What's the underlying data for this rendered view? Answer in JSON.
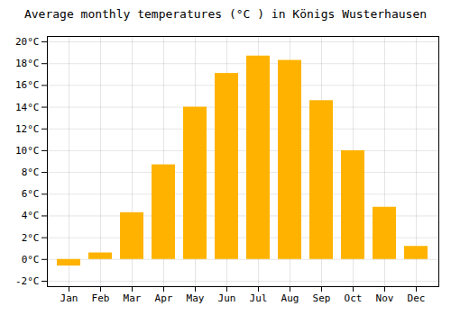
{
  "chart_data": {
    "type": "bar",
    "title": "Average monthly temperatures (°C ) in Königs Wusterhausen",
    "categories": [
      "Jan",
      "Feb",
      "Mar",
      "Apr",
      "May",
      "Jun",
      "Jul",
      "Aug",
      "Sep",
      "Oct",
      "Nov",
      "Dec"
    ],
    "values": [
      -0.6,
      0.6,
      4.3,
      8.7,
      14.0,
      17.1,
      18.7,
      18.3,
      14.6,
      10.0,
      4.8,
      1.2
    ],
    "color": "#FFB300",
    "ylim": [
      -2.5,
      20.5
    ],
    "yticks": [
      {
        "value": -2,
        "label": "-2°C"
      },
      {
        "value": 0,
        "label": "0°C"
      },
      {
        "value": 2,
        "label": "2°C"
      },
      {
        "value": 4,
        "label": "4°C"
      },
      {
        "value": 6,
        "label": "6°C"
      },
      {
        "value": 8,
        "label": "8°C"
      },
      {
        "value": 10,
        "label": "10°C"
      },
      {
        "value": 12,
        "label": "12°C"
      },
      {
        "value": 14,
        "label": "14°C"
      },
      {
        "value": 16,
        "label": "16°C"
      },
      {
        "value": 18,
        "label": "18°C"
      },
      {
        "value": 20,
        "label": "20°C"
      }
    ],
    "grid": true
  }
}
